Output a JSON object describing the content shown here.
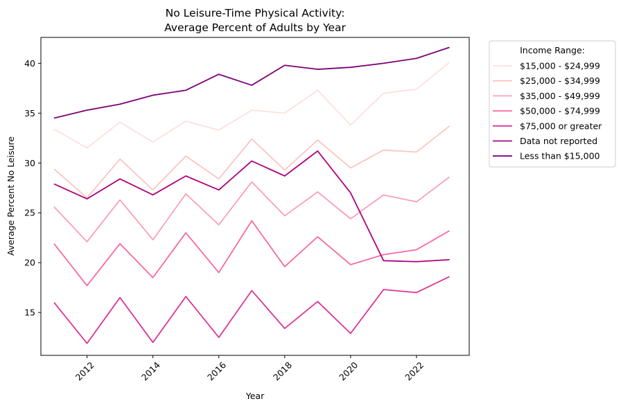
{
  "chart_data": {
    "type": "line",
    "title_lines": [
      "No Leisure-Time Physical Activity:",
      "Average Percent of Adults by Year"
    ],
    "xlabel": "Year",
    "ylabel": "Average Percent No Leisure",
    "xlim": [
      2010.6,
      2023.6
    ],
    "ylim": [
      10.7,
      42.6
    ],
    "x_ticks": [
      2012,
      2014,
      2016,
      2018,
      2020,
      2022
    ],
    "y_ticks": [
      15,
      20,
      25,
      30,
      35,
      40
    ],
    "grid": false,
    "legend_position": "outside-top-right",
    "legend_title": "Income Range:",
    "x": [
      2011,
      2012,
      2013,
      2014,
      2015,
      2016,
      2017,
      2018,
      2019,
      2020,
      2021,
      2022,
      2023
    ],
    "series": [
      {
        "name": "$15,000 - $24,999",
        "color": "#fde0dd",
        "values": [
          33.4,
          31.5,
          34.1,
          32.1,
          34.2,
          33.3,
          35.3,
          35.0,
          37.3,
          33.8,
          37.0,
          37.4,
          40.1
        ]
      },
      {
        "name": "$25,000 - $34,999",
        "color": "#fcc5c0",
        "values": [
          29.4,
          26.5,
          30.4,
          27.3,
          30.7,
          28.4,
          32.4,
          29.3,
          32.3,
          29.5,
          31.3,
          31.1,
          33.7
        ]
      },
      {
        "name": "$35,000 - $49,999",
        "color": "#fa9fb5",
        "values": [
          25.6,
          22.1,
          26.3,
          22.3,
          26.9,
          23.8,
          28.1,
          24.7,
          27.1,
          24.4,
          26.8,
          26.1,
          28.6
        ]
      },
      {
        "name": "$50,000 - $74,999",
        "color": "#f768a1",
        "values": [
          21.9,
          17.7,
          21.9,
          18.5,
          23.0,
          19.0,
          24.2,
          19.6,
          22.6,
          19.8,
          20.8,
          21.3,
          23.2
        ]
      },
      {
        "name": "$75,000 or greater",
        "color": "#dd3497",
        "values": [
          16.0,
          11.9,
          16.5,
          12.0,
          16.6,
          12.5,
          17.2,
          13.4,
          16.1,
          12.9,
          17.3,
          17.0,
          18.6
        ]
      },
      {
        "name": "Data not reported",
        "color": "#ae017e",
        "values": [
          27.9,
          26.4,
          28.4,
          26.8,
          28.7,
          27.3,
          30.2,
          28.7,
          31.2,
          27.0,
          20.2,
          20.1,
          20.3
        ]
      },
      {
        "name": "Less than $15,000",
        "color": "#7a0177",
        "values": [
          34.5,
          35.3,
          35.9,
          36.8,
          37.3,
          38.9,
          37.8,
          39.8,
          39.4,
          39.6,
          40.0,
          40.5,
          41.6
        ]
      }
    ]
  }
}
